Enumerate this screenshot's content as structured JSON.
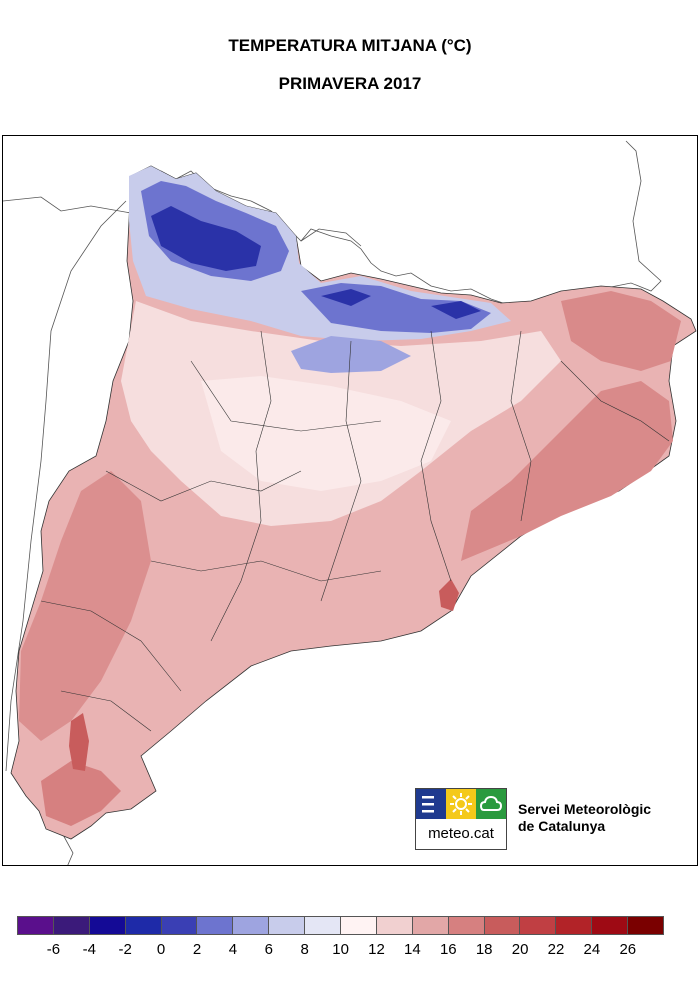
{
  "title": "TEMPERATURA MITJANA (°C)",
  "subtitle": "PRIMAVERA 2017",
  "logo": {
    "text": "meteo.cat",
    "panel_colors": [
      "#1f3a8f",
      "#f4c91a",
      "#2a9a3e"
    ],
    "icons": [
      "waves-icon",
      "sun-icon",
      "cloud-icon"
    ]
  },
  "organization": {
    "line1": "Servei Meteorològic",
    "line2": "de Catalunya"
  },
  "legend": {
    "colors": [
      "#5a0f8c",
      "#3b1a7a",
      "#140a96",
      "#1e2aa8",
      "#3a3fb4",
      "#6d74cf",
      "#9ea4e0",
      "#c8cceb",
      "#e4e6f5",
      "#fff3f3",
      "#f1d0d0",
      "#e2a7a7",
      "#d68080",
      "#c85c5c",
      "#c03f43",
      "#b22328",
      "#9e0a14",
      "#7a0000"
    ],
    "ticks": [
      "-6",
      "-4",
      "-2",
      "0",
      "2",
      "4",
      "6",
      "8",
      "10",
      "12",
      "14",
      "16",
      "18",
      "20",
      "22",
      "24",
      "26"
    ]
  }
}
